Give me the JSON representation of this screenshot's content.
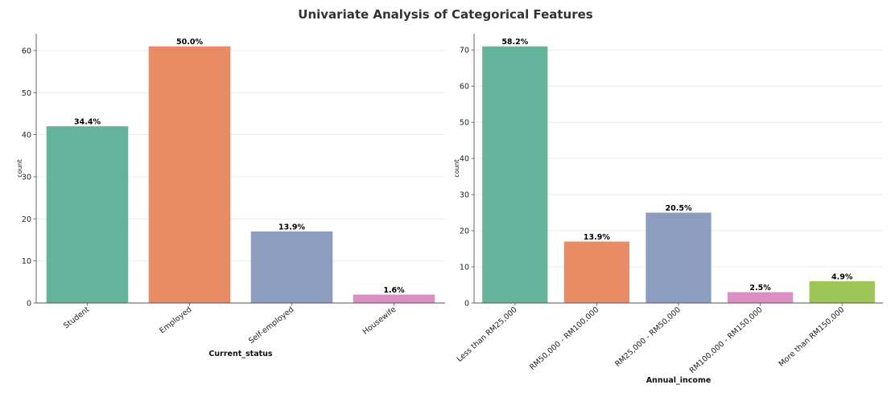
{
  "suptitle": "Univariate Analysis of Categorical Features",
  "chart_data": [
    {
      "type": "bar",
      "categories": [
        "Student",
        "Employed",
        "Self-employed",
        "Housewife"
      ],
      "values": [
        42,
        61,
        17,
        2
      ],
      "data_labels": [
        "34.4%",
        "50.0%",
        "13.9%",
        "1.6%"
      ],
      "colors": [
        "#66b39c",
        "#e98c66",
        "#8d9dc0",
        "#dc8fc3"
      ],
      "title": "",
      "xlabel": "Current_status",
      "ylabel": "count",
      "ylim": [
        0,
        64
      ],
      "yticks": [
        0,
        10,
        20,
        30,
        40,
        50,
        60
      ],
      "grid": true
    },
    {
      "type": "bar",
      "categories": [
        "Less than RM25,000",
        "RM50,000 - RM100,000",
        "RM25,000 - RM50,000",
        "RM100,000 - RM150,000",
        "More than RM150,000"
      ],
      "values": [
        71,
        17,
        25,
        3,
        6
      ],
      "data_labels": [
        "58.2%",
        "13.9%",
        "20.5%",
        "2.5%",
        "4.9%"
      ],
      "colors": [
        "#66b39c",
        "#e98c66",
        "#8d9dc0",
        "#dc8fc3",
        "#9cc656"
      ],
      "title": "",
      "xlabel": "Annual_income",
      "ylabel": "count",
      "ylim": [
        0,
        74.5
      ],
      "yticks": [
        0,
        10,
        20,
        30,
        40,
        50,
        60,
        70
      ],
      "grid": true
    }
  ]
}
